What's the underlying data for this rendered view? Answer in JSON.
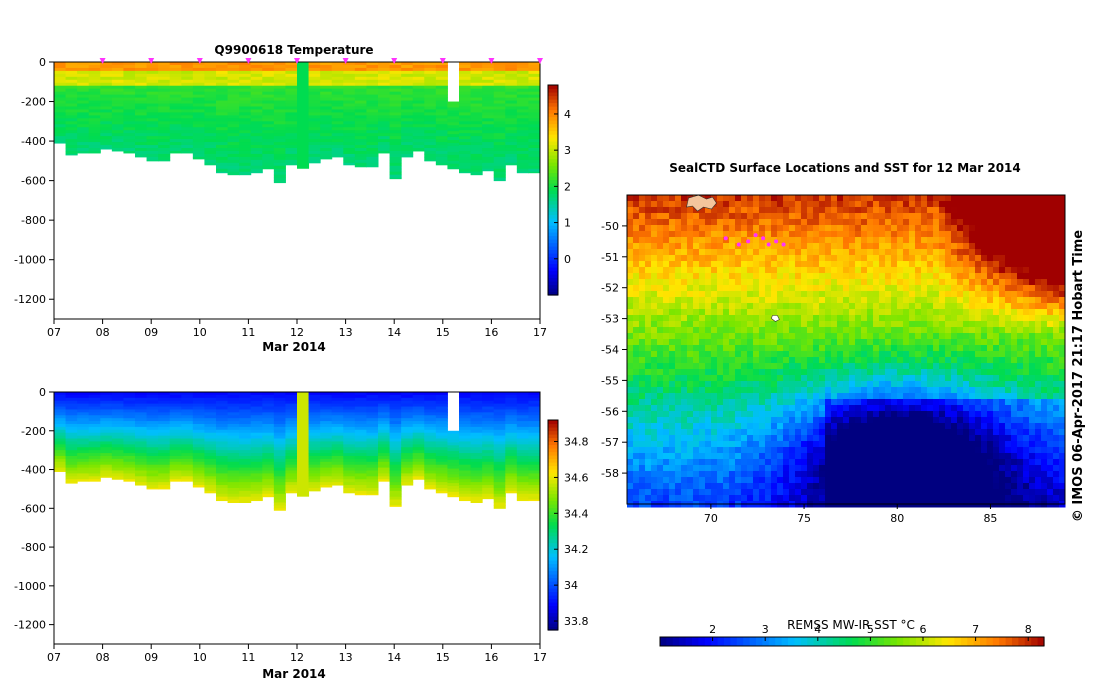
{
  "chart_data": [
    {
      "type": "heatmap",
      "title": "Q9900618  Temperature",
      "xlabel": "Mar 2014",
      "ylabel": "",
      "x_ticks": [
        "07",
        "08",
        "09",
        "10",
        "11",
        "12",
        "13",
        "14",
        "15",
        "16",
        "17"
      ],
      "xlim": [
        7,
        17
      ],
      "y_ticks": [
        "0",
        "-200",
        "-400",
        "-600",
        "-800",
        "-1000",
        "-1200"
      ],
      "ylim": [
        -1300,
        0
      ],
      "colorbar_ticks": [
        "0",
        "1",
        "2",
        "3",
        "4"
      ],
      "clim": [
        -1,
        4.8
      ],
      "profile_marker_days": [
        8,
        9,
        10,
        11,
        12,
        13,
        14,
        15,
        16,
        17
      ],
      "profile_max_depth": [
        410,
        470,
        460,
        460,
        440,
        450,
        460,
        480,
        500,
        500,
        460,
        460,
        490,
        520,
        560,
        570,
        570,
        560,
        540,
        610,
        520,
        540,
        510,
        490,
        480,
        520,
        530,
        530,
        460,
        590,
        480,
        450,
        500,
        520,
        540,
        560,
        570,
        550,
        600,
        520,
        560,
        560
      ],
      "columns": {
        "variable": "temperature",
        "surface_value": 4.0,
        "deep_value": 0.8
      }
    },
    {
      "type": "heatmap",
      "title": "",
      "xlabel": "Mar 2014",
      "ylabel": "",
      "x_ticks": [
        "07",
        "08",
        "09",
        "10",
        "11",
        "12",
        "13",
        "14",
        "15",
        "16",
        "17"
      ],
      "xlim": [
        7,
        17
      ],
      "y_ticks": [
        "0",
        "-200",
        "-400",
        "-600",
        "-800",
        "-1000",
        "-1200"
      ],
      "ylim": [
        -1300,
        0
      ],
      "colorbar_ticks": [
        "33.8",
        "34",
        "34.2",
        "34.4",
        "34.6",
        "34.8"
      ],
      "clim": [
        33.75,
        34.92
      ],
      "columns": {
        "variable": "salinity",
        "surface_value": 33.9,
        "deep_value": 34.65
      }
    },
    {
      "type": "heatmap",
      "title": "SealCTD Surface Locations and SST for 12 Mar 2014",
      "xlabel": "",
      "ylabel": "",
      "x_ticks": [
        "70",
        "75",
        "80",
        "85"
      ],
      "xlim": [
        65.5,
        89
      ],
      "y_ticks": [
        "-50",
        "-51",
        "-52",
        "-53",
        "-54",
        "-55",
        "-56",
        "-57",
        "-58"
      ],
      "ylim": [
        -59,
        -49
      ],
      "colorbar_label": "REMSS MW-IR SST °C",
      "colorbar_ticks": [
        "2",
        "3",
        "4",
        "5",
        "6",
        "7",
        "8"
      ],
      "clim": [
        1,
        8.3
      ],
      "side_label": "© IMOS 06-Apr-2017 21:17 Hobart Time",
      "surface_locations": [
        [
          70.8,
          -50.4
        ],
        [
          71.5,
          -50.6
        ],
        [
          72.0,
          -50.5
        ],
        [
          72.4,
          -50.3
        ],
        [
          72.8,
          -50.4
        ],
        [
          73.1,
          -50.6
        ],
        [
          73.5,
          -50.5
        ],
        [
          73.9,
          -50.6
        ]
      ]
    }
  ],
  "colors": {
    "magenta": "#ff33ff",
    "land": "#f4c59c",
    "axis": "#000000"
  }
}
